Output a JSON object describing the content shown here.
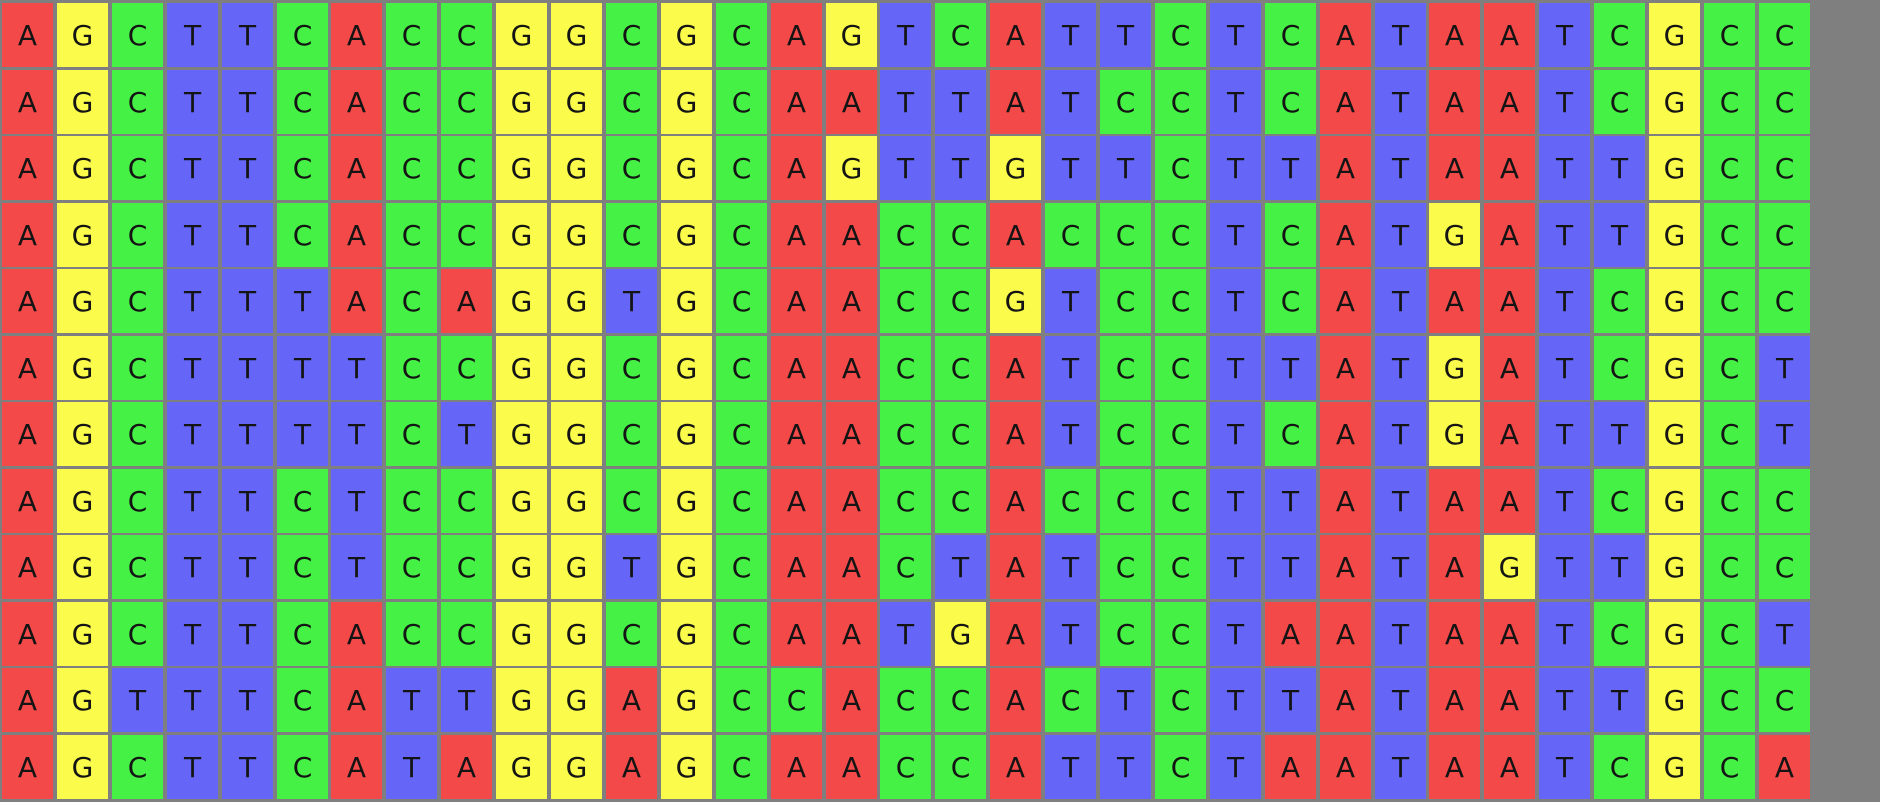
{
  "colors": {
    "A": "#f44949",
    "G": "#fbfb4b",
    "C": "#46f146",
    "T": "#6566f7",
    "grid": "#7f7f7f"
  },
  "sequences": [
    "AGCTTCACCGGCGCAGTCATTCTCATAATCGCC",
    "AGCTTCACCGGCGCAATTATCCTCATAATCGCC",
    "AGCTTCACCGGCGCAGTTGTTCTTATAATTGCC",
    "AGCTTCACCGGCGCAACCACCCTCATGATTGCC",
    "AGCTTTACAGGTGCAACCGTCCTCATAATCGCC",
    "AGCTTTTCCGGCGCAACCATCCTTATGATCGCT",
    "AGCTTTTCTGGCGCAACCATCCTCATGATTGCT",
    "AGCTTCTCCGGCGCAACCACCCTTATAATCGCC",
    "AGCTTCTCCGGTGCAACTATCCTTATAGTTGCC",
    "AGCTTCACCGGCGCAATGATCCTAATAATCGCT",
    "AGTTTCATTGGAGCCACCACTCTTATAATTGCC",
    "AGCTTCATAGGAGCAACCATTCTAATAATCGCA"
  ]
}
